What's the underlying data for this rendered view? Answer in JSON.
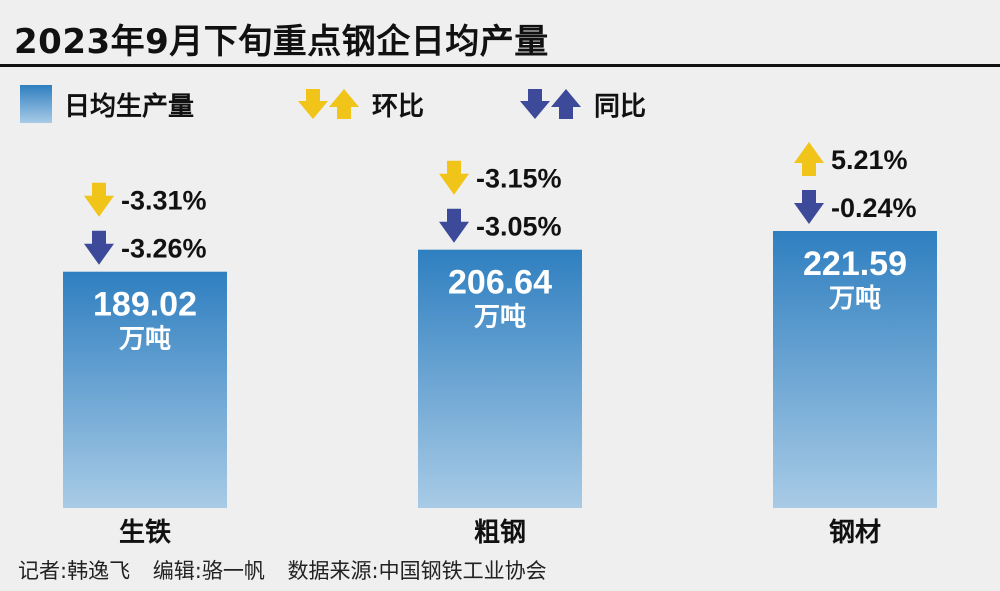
{
  "title": "2023年9月下旬重点钢企日均产量",
  "legend": {
    "production": "日均生产量",
    "mom": "环比",
    "yoy": "同比"
  },
  "colors": {
    "bar_top": "#2f7fc0",
    "bar_bottom": "#a8cbe6",
    "mom_arrow": "#f0c419",
    "yoy_arrow": "#3d4a9a"
  },
  "chart_data": {
    "type": "bar",
    "title": "2023年9月下旬重点钢企日均产量",
    "categories": [
      "生铁",
      "粗钢",
      "钢材"
    ],
    "unit": "万吨",
    "series": [
      {
        "name": "日均生产量",
        "values": [
          189.02,
          206.64,
          221.59
        ]
      }
    ],
    "value_labels": [
      "189.02",
      "206.64",
      "221.59"
    ],
    "changes": [
      {
        "mom": "-3.31%",
        "mom_dir": "down",
        "yoy": "-3.26%",
        "yoy_dir": "down"
      },
      {
        "mom": "-3.15%",
        "mom_dir": "down",
        "yoy": "-3.05%",
        "yoy_dir": "down"
      },
      {
        "mom": "5.21%",
        "mom_dir": "up",
        "yoy": "-0.24%",
        "yoy_dir": "down"
      }
    ],
    "ylim": [
      0,
      221.59
    ]
  },
  "footer": {
    "reporter": "记者:韩逸飞",
    "editor": "编辑:骆一帆",
    "source": "数据来源:中国钢铁工业协会"
  }
}
